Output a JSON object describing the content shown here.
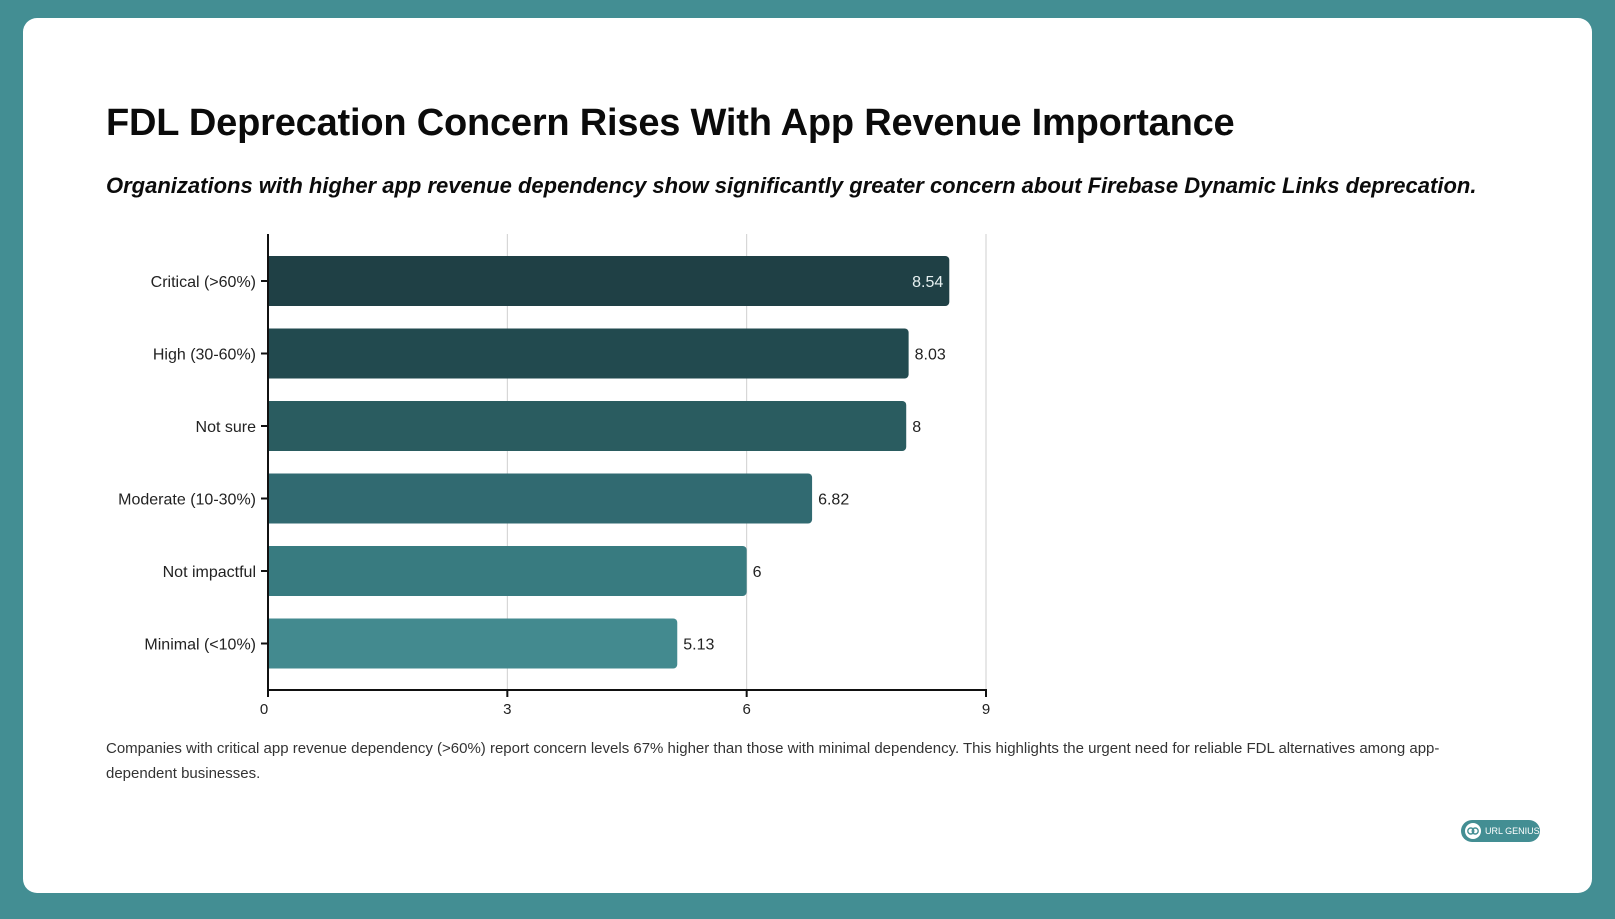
{
  "header": {
    "title": "FDL Deprecation Concern Rises With App Revenue Importance",
    "subtitle": "Organizations with higher app revenue dependency show significantly greater concern about Firebase Dynamic Links deprecation."
  },
  "footer": {
    "note": "Companies with critical app revenue dependency (>60%) report concern levels 67% higher than those with minimal dependency. This highlights the urgent need for reliable FDL alternatives among app-dependent businesses.",
    "brand": "URL GENIUS",
    "brand_icon": "link-icon"
  },
  "colors": {
    "frame": "#438e93",
    "bars": [
      "#1f4045",
      "#224a4f",
      "#2a5c60",
      "#316a71",
      "#387b80",
      "#438a8f"
    ]
  },
  "chart_data": {
    "type": "bar",
    "orientation": "horizontal",
    "categories": [
      "Critical (>60%)",
      "High (30-60%)",
      "Not sure",
      "Moderate (10-30%)",
      "Not impactful",
      "Minimal (<10%)"
    ],
    "values": [
      8.54,
      8.03,
      8,
      6.82,
      6,
      5.13
    ],
    "value_labels": [
      "8.54",
      "8.03",
      "8",
      "6.82",
      "6",
      "5.13"
    ],
    "xlim": [
      0,
      9
    ],
    "xticks": [
      0,
      3,
      6,
      9
    ],
    "xtick_labels": [
      "0",
      "3",
      "6",
      "9"
    ],
    "grid": true,
    "legend": "none"
  }
}
